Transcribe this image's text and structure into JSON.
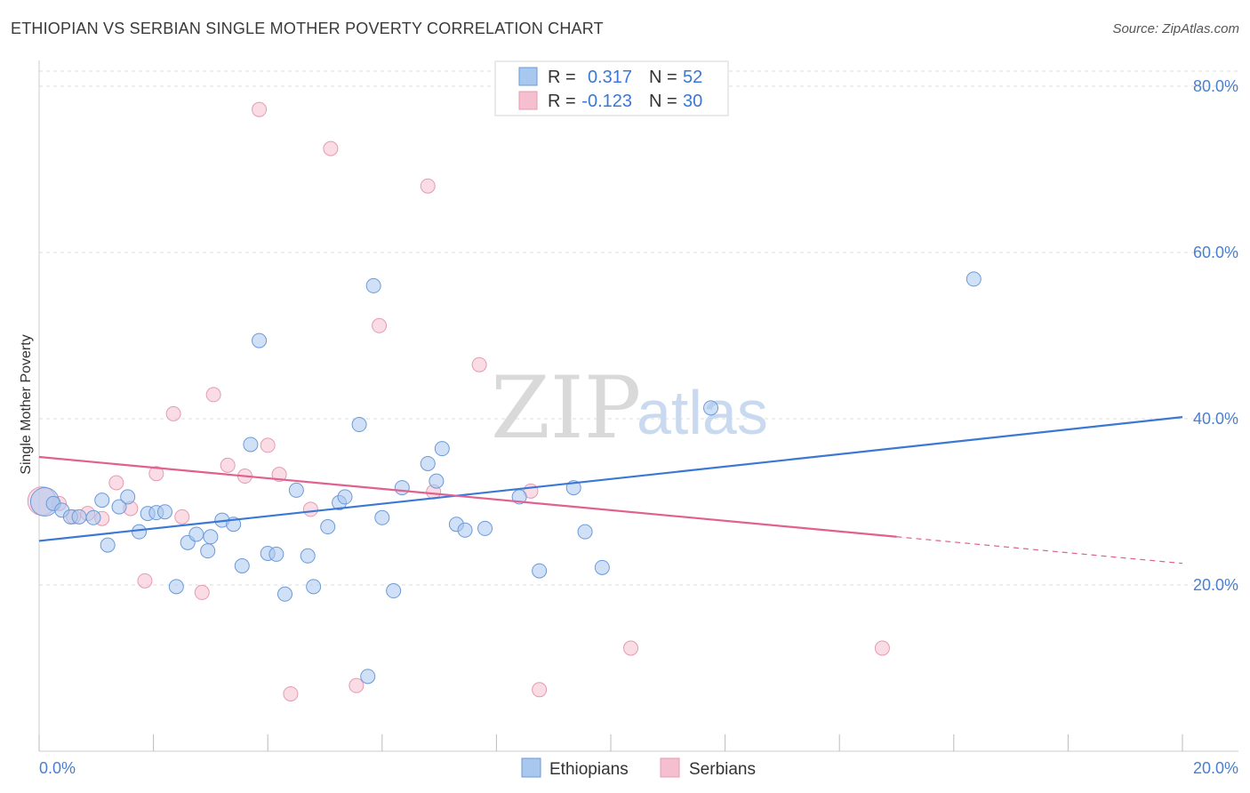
{
  "title": "ETHIOPIAN VS SERBIAN SINGLE MOTHER POVERTY CORRELATION CHART",
  "source": "Source: ZipAtlas.com",
  "watermark": {
    "part1": "ZIP",
    "part2": "atlas"
  },
  "colors": {
    "ethiopians_fill": "#a9c8f0",
    "ethiopians_stroke": "#6b9ad8",
    "ethiopians_line": "#3a78d4",
    "serbians_fill": "#f5bfd0",
    "serbians_stroke": "#e69ab3",
    "serbians_line": "#e0608f",
    "tick_text": "#4a7fd0",
    "grid": "#dddddd"
  },
  "legend": {
    "rows": [
      {
        "r_label": "R =",
        "r_value": "0.317",
        "n_label": "N =",
        "n_value": "52"
      },
      {
        "r_label": "R =",
        "r_value": "-0.123",
        "n_label": "N =",
        "n_value": "30"
      }
    ]
  },
  "bottom_legend": [
    "Ethiopians",
    "Serbians"
  ],
  "chart_data": {
    "type": "scatter",
    "title": "ETHIOPIAN VS SERBIAN SINGLE MOTHER POVERTY CORRELATION CHART",
    "xlabel": "",
    "ylabel": "Single Mother Poverty",
    "xlim": [
      0,
      20
    ],
    "ylim": [
      0,
      80
    ],
    "x_tick_labels": [
      "0.0%",
      "20.0%"
    ],
    "y_ticks": [
      20,
      40,
      60,
      80
    ],
    "y_tick_labels": [
      "20.0%",
      "40.0%",
      "60.0%",
      "80.0%"
    ],
    "grid": true,
    "legend_position": "top-center",
    "series": [
      {
        "name": "Ethiopians",
        "r": 0.317,
        "n": 52,
        "trend": {
          "x": [
            0,
            20
          ],
          "y": [
            25.3,
            40.2
          ]
        },
        "points": [
          [
            0.1,
            30.0
          ],
          [
            0.25,
            29.8
          ],
          [
            0.4,
            29.0
          ],
          [
            0.55,
            28.2
          ],
          [
            0.7,
            28.2
          ],
          [
            0.95,
            28.1
          ],
          [
            1.1,
            30.2
          ],
          [
            1.2,
            24.8
          ],
          [
            1.4,
            29.4
          ],
          [
            1.55,
            30.6
          ],
          [
            1.75,
            26.4
          ],
          [
            1.9,
            28.6
          ],
          [
            2.05,
            28.7
          ],
          [
            2.2,
            28.8
          ],
          [
            2.4,
            19.8
          ],
          [
            2.6,
            25.1
          ],
          [
            2.75,
            26.1
          ],
          [
            2.95,
            24.1
          ],
          [
            3.0,
            25.8
          ],
          [
            3.2,
            27.8
          ],
          [
            3.4,
            27.3
          ],
          [
            3.55,
            22.3
          ],
          [
            3.7,
            36.9
          ],
          [
            3.85,
            49.4
          ],
          [
            4.0,
            23.8
          ],
          [
            4.15,
            23.7
          ],
          [
            4.3,
            18.9
          ],
          [
            4.5,
            31.4
          ],
          [
            4.7,
            23.5
          ],
          [
            4.8,
            19.8
          ],
          [
            5.05,
            27.0
          ],
          [
            5.25,
            29.9
          ],
          [
            5.35,
            30.6
          ],
          [
            5.6,
            39.3
          ],
          [
            5.75,
            9.0
          ],
          [
            5.85,
            56.0
          ],
          [
            6.0,
            28.1
          ],
          [
            6.2,
            19.3
          ],
          [
            6.35,
            31.7
          ],
          [
            6.8,
            34.6
          ],
          [
            6.95,
            32.5
          ],
          [
            7.05,
            36.4
          ],
          [
            7.3,
            27.3
          ],
          [
            7.45,
            26.6
          ],
          [
            7.8,
            26.8
          ],
          [
            8.4,
            30.6
          ],
          [
            8.75,
            21.7
          ],
          [
            9.35,
            31.7
          ],
          [
            9.55,
            26.4
          ],
          [
            9.85,
            22.1
          ],
          [
            11.75,
            41.3
          ],
          [
            16.35,
            56.8
          ]
        ]
      },
      {
        "name": "Serbians",
        "r": -0.123,
        "n": 30,
        "trend": {
          "x": [
            0,
            15
          ],
          "y": [
            35.4,
            25.8
          ]
        },
        "trend_dashed": {
          "x": [
            15,
            20
          ],
          "y": [
            25.8,
            22.6
          ]
        },
        "points": [
          [
            0.05,
            30.1
          ],
          [
            0.35,
            29.8
          ],
          [
            0.6,
            28.2
          ],
          [
            0.85,
            28.6
          ],
          [
            1.1,
            28.0
          ],
          [
            1.35,
            32.3
          ],
          [
            1.6,
            29.2
          ],
          [
            1.85,
            20.5
          ],
          [
            2.05,
            33.4
          ],
          [
            2.35,
            40.6
          ],
          [
            2.5,
            28.2
          ],
          [
            2.85,
            19.1
          ],
          [
            3.05,
            42.9
          ],
          [
            3.3,
            34.4
          ],
          [
            3.6,
            33.1
          ],
          [
            3.85,
            77.2
          ],
          [
            4.0,
            36.8
          ],
          [
            4.2,
            33.3
          ],
          [
            4.4,
            6.9
          ],
          [
            4.75,
            29.1
          ],
          [
            5.1,
            72.5
          ],
          [
            5.55,
            7.9
          ],
          [
            5.95,
            51.2
          ],
          [
            6.8,
            68.0
          ],
          [
            6.9,
            31.2
          ],
          [
            7.7,
            46.5
          ],
          [
            8.6,
            31.3
          ],
          [
            8.75,
            7.4
          ],
          [
            10.35,
            12.4
          ],
          [
            14.75,
            12.4
          ]
        ]
      }
    ]
  }
}
